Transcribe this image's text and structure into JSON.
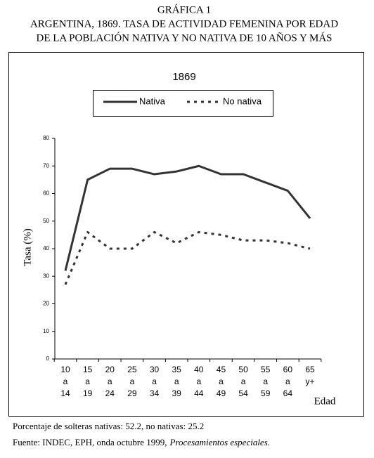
{
  "chart_data": {
    "type": "line",
    "heading": "GRÁFICA 1",
    "title_lines": [
      "ARGENTINA, 1869. TASA DE ACTIVIDAD FEMENINA POR EDAD",
      "DE LA POBLACIÓN NATIVA Y NO NATIVA DE 10 AÑOS Y MÁS"
    ],
    "title": "1869",
    "categories": [
      [
        "10",
        "a",
        "14"
      ],
      [
        "15",
        "a",
        "19"
      ],
      [
        "20",
        "a",
        "24"
      ],
      [
        "25",
        "a",
        "29"
      ],
      [
        "30",
        "a",
        "34"
      ],
      [
        "35",
        "a",
        "39"
      ],
      [
        "40",
        "a",
        "44"
      ],
      [
        "45",
        "a",
        "49"
      ],
      [
        "50",
        "a",
        "54"
      ],
      [
        "55",
        "a",
        "59"
      ],
      [
        "60",
        "a",
        "64"
      ],
      [
        "65",
        "y+"
      ]
    ],
    "series": [
      {
        "name": "Nativa",
        "color": "#333333",
        "dashed": false,
        "values": [
          32,
          65,
          69,
          69,
          67,
          68,
          70,
          67,
          67,
          64,
          61,
          51
        ]
      },
      {
        "name": "No nativa",
        "color": "#333333",
        "dashed": true,
        "values": [
          27,
          46,
          40,
          40,
          46,
          42,
          46,
          45,
          43,
          43,
          42,
          40
        ]
      }
    ],
    "ylim": [
      0,
      80
    ],
    "yticks": [
      0,
      10,
      20,
      30,
      40,
      50,
      60,
      70,
      80
    ],
    "ylabel": "Tasa (%)",
    "xlabel": "Edad",
    "note": "Porcentaje de solteras nativas: 52.2,  no nativas: 25.2",
    "source": "Fuente: INDEC, EPH, onda octubre 1999,",
    "source_italic": "Procesamientos especiales."
  }
}
